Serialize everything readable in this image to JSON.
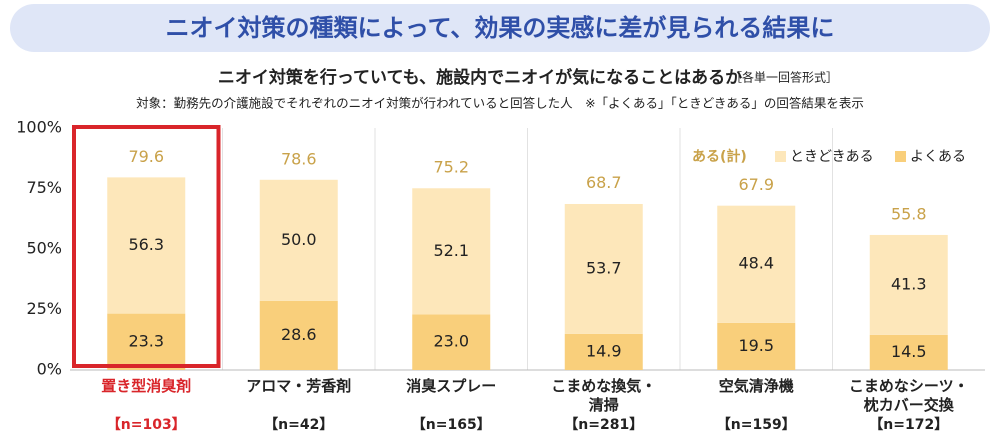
{
  "banner": "ニオイ対策の種類によって、効果の実感に差が見られる結果に",
  "chart_data": {
    "type": "stacked_bar",
    "title": "ニオイ対策を行っていても、施設内でニオイが気になることはあるか",
    "subtitle": "［各単一回答形式］",
    "note": "対象：勤務先の介護施設でそれぞれのニオイ対策が行われていると回答した人　※「よくある」「ときどきある」の回答結果を表示",
    "categories": [
      "置き型消臭剤",
      "アロマ・芳香剤",
      "消臭スプレー",
      "こまめな換気・\n清掃",
      "空気清浄機",
      "こまめなシーツ・\n枕カバー交換"
    ],
    "sample_sizes": [
      "【n=103】",
      "【n=42】",
      "【n=165】",
      "【n=281】",
      "【n=159】",
      "【n=172】"
    ],
    "series": [
      {
        "name": "よくある",
        "color": "#f9cf7b",
        "values": [
          23.3,
          28.6,
          23.0,
          14.9,
          19.5,
          14.5
        ],
        "value_labels": [
          "23.3",
          "28.6",
          "23.0",
          "14.9",
          "19.5",
          "14.5"
        ]
      },
      {
        "name": "ときどきある",
        "color": "#fde7ba",
        "values": [
          56.3,
          50.0,
          52.1,
          53.7,
          48.4,
          41.3
        ],
        "value_labels": [
          "56.3",
          "50.0",
          "52.1",
          "53.7",
          "48.4",
          "41.3"
        ]
      }
    ],
    "totals": {
      "name": "ある(計)",
      "color": "#c9a24a",
      "values": [
        79.6,
        78.6,
        75.2,
        68.7,
        67.9,
        55.8
      ]
    },
    "ylim": [
      0,
      100
    ],
    "yticks": [
      {
        "value": 0,
        "label": "0%"
      },
      {
        "value": 25,
        "label": "25%"
      },
      {
        "value": 50,
        "label": "50%"
      },
      {
        "value": 75,
        "label": "75%"
      },
      {
        "value": 100,
        "label": "100%"
      }
    ],
    "highlight_color": "#d9252a",
    "grid": false
  }
}
